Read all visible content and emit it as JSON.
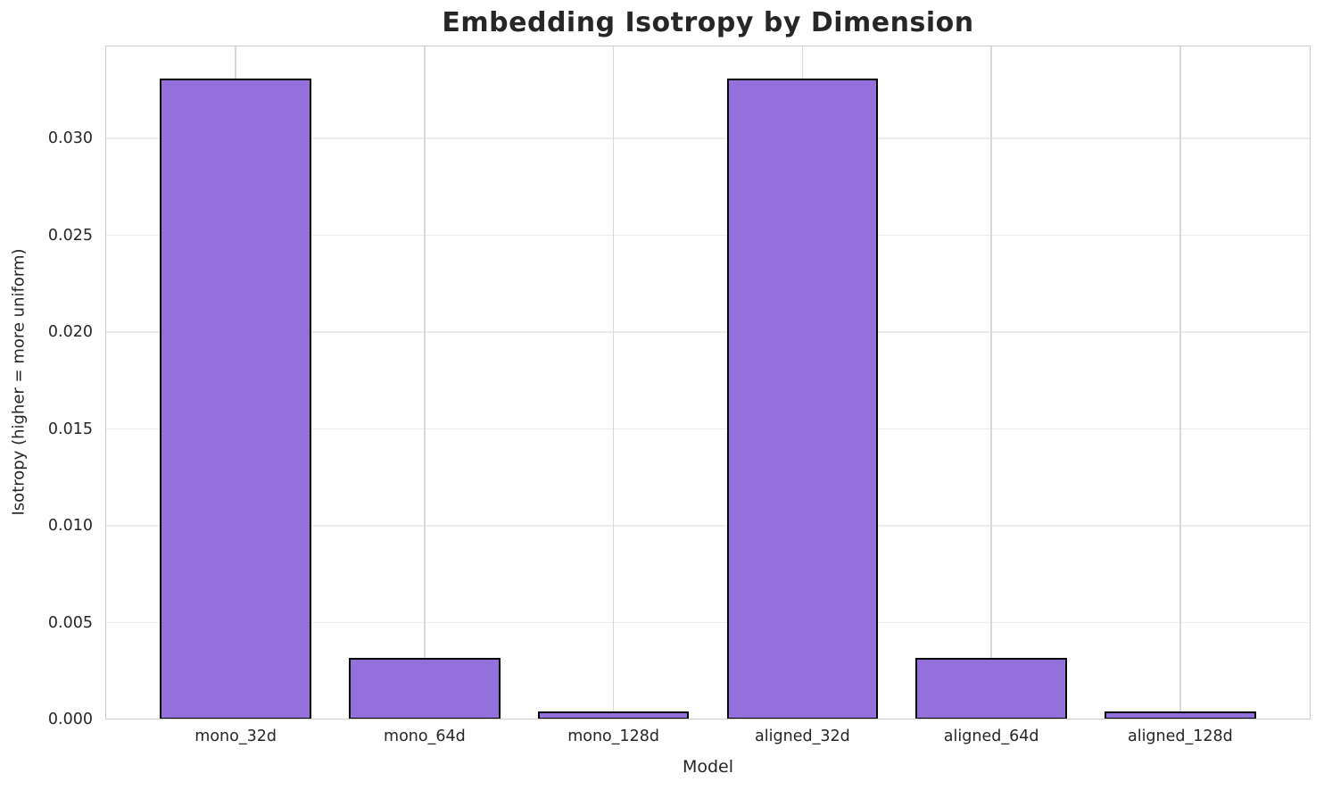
{
  "chart_data": {
    "type": "bar",
    "title": "Embedding Isotropy by Dimension",
    "xlabel": "Model",
    "ylabel": "Isotropy (higher = more uniform)",
    "categories": [
      "mono_32d",
      "mono_64d",
      "mono_128d",
      "aligned_32d",
      "aligned_64d",
      "aligned_128d"
    ],
    "values": [
      0.0331,
      0.0032,
      0.0004,
      0.0331,
      0.0032,
      0.0004
    ],
    "ylim": [
      0,
      0.0348
    ],
    "xlim": [
      -0.69,
      5.69
    ],
    "yticks": [
      0.0,
      0.005,
      0.01,
      0.015,
      0.02,
      0.025,
      0.03
    ],
    "ytick_labels": [
      "0.000",
      "0.005",
      "0.010",
      "0.015",
      "0.020",
      "0.025",
      "0.030"
    ],
    "bar_width_units": 0.8,
    "grid": true,
    "legend": false,
    "colors": {
      "bar_fill": "#9370DB",
      "bar_edge": "#000000",
      "grid_horizontal": "#ececec",
      "grid_vertical": "#d9d9d9",
      "spine": "#cccccc",
      "text": "#262626"
    }
  }
}
